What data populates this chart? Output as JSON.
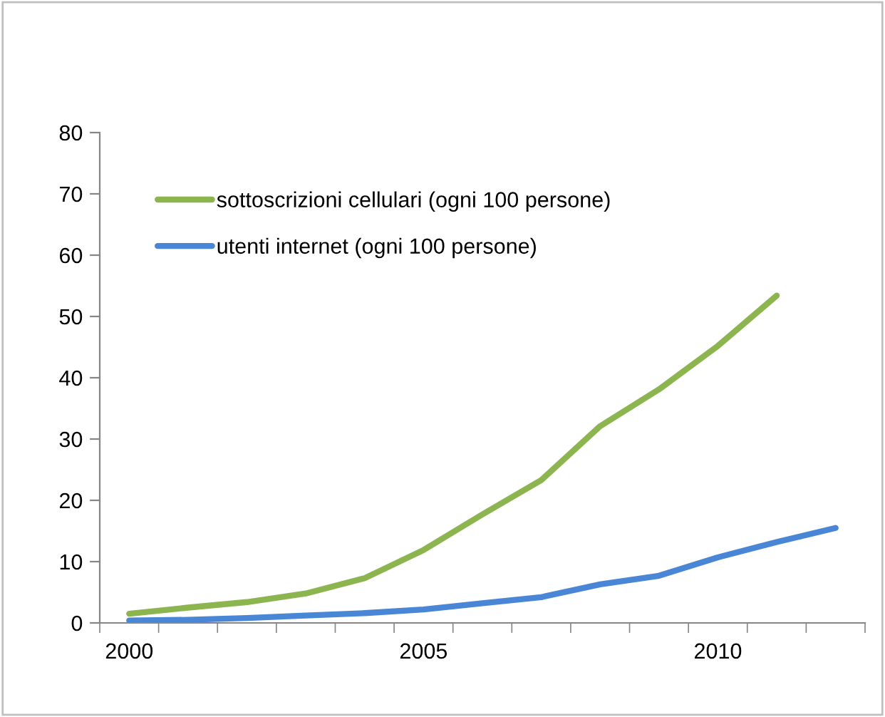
{
  "chart_data": {
    "type": "line",
    "categories": [
      "2000",
      null,
      null,
      null,
      null,
      "2005",
      null,
      null,
      null,
      null,
      "2010",
      null,
      null
    ],
    "series": [
      {
        "name": "sottoscrizioni cellulari (ogni 100 persone)",
        "color": "#8db54f",
        "values": [
          1.5,
          2.5,
          3.4,
          4.8,
          7.3,
          11.9,
          17.7,
          23.3,
          32.1,
          38.1,
          45.2,
          53.4,
          null
        ]
      },
      {
        "name": "utenti internet (ogni 100 persone)",
        "color": "#4a86d6",
        "values": [
          0.4,
          0.5,
          0.8,
          1.2,
          1.6,
          2.2,
          3.2,
          4.2,
          6.3,
          7.7,
          10.7,
          13.2,
          15.5
        ]
      }
    ],
    "ylim": [
      0,
      80
    ],
    "yticks": [
      0,
      10,
      20,
      30,
      40,
      50,
      60,
      70,
      80
    ],
    "grid": false,
    "legend": "top left",
    "marker": "none",
    "line_style": "solid"
  }
}
